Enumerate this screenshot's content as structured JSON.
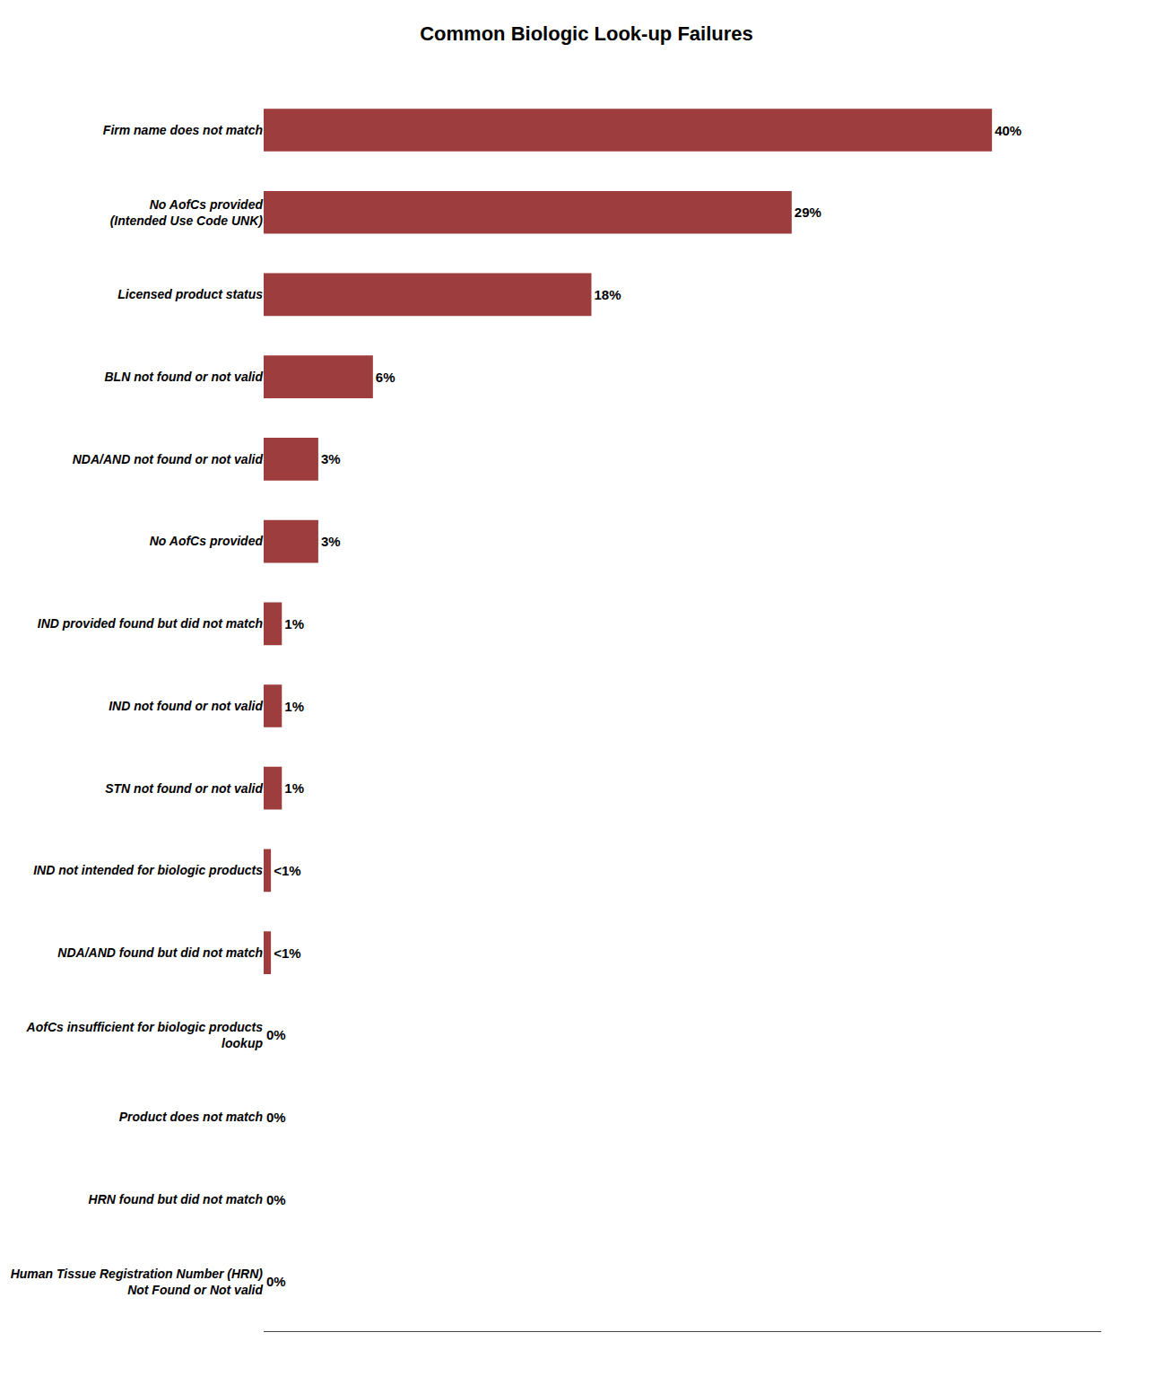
{
  "chart_data": {
    "type": "bar",
    "orientation": "horizontal",
    "title": "Common Biologic Look-up Failures",
    "categories": [
      "Human Tissue Registration Number (HRN)\nNot Found or Not valid",
      "HRN found but did not match",
      "Product does not match",
      "AofCs insufficient for biologic products\nlookup",
      "NDA/AND found but did not match",
      "IND not intended for biologic products",
      "STN not found or not valid",
      "IND not found or not valid",
      "IND provided found but did not match",
      "No AofCs provided",
      "NDA/AND not found or not valid",
      "BLN not found or not valid",
      "Licensed product status",
      "No AofCs provided\n(Intended Use Code UNK)",
      "Firm name does not match"
    ],
    "values": [
      0,
      0,
      0,
      0,
      0.4,
      0.4,
      1,
      1,
      1,
      3,
      3,
      6,
      18,
      29,
      40
    ],
    "value_labels": [
      "0%",
      "0%",
      "0%",
      "0%",
      "<1%",
      "<1%",
      "1%",
      "1%",
      "1%",
      "3%",
      "3%",
      "6%",
      "18%",
      "29%",
      "40%"
    ],
    "data_labels": true,
    "color": "#9e3d3d",
    "xlim": [
      0,
      46
    ],
    "xticks": [],
    "tick_labels": "y",
    "grid": false
  }
}
